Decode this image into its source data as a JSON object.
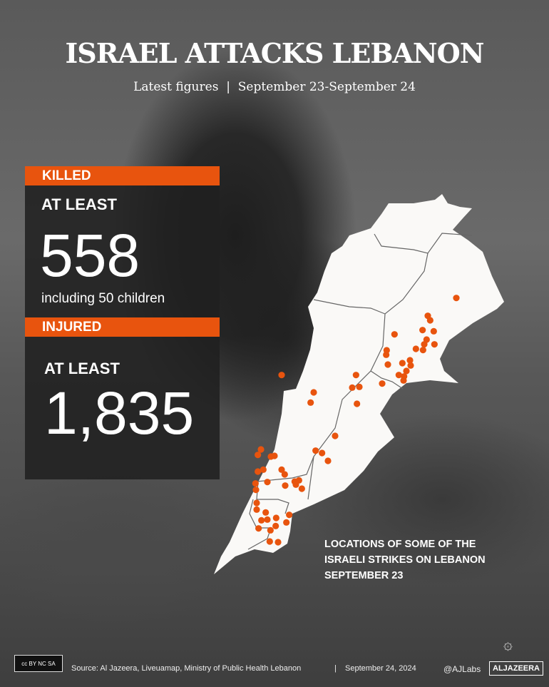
{
  "header": {
    "title": "ISRAEL ATTACKS LEBANON",
    "subtitle_left": "Latest figures",
    "subtitle_sep": "|",
    "subtitle_right": "September 23-September 24"
  },
  "killed": {
    "label": "KILLED",
    "prefix": "AT LEAST",
    "value": "558",
    "note": "including 50 children"
  },
  "injured": {
    "label": "INJURED",
    "prefix": "AT LEAST",
    "value": "1,835"
  },
  "map": {
    "caption_lines": [
      "LOCATIONS OF SOME OF THE",
      "ISRAELI STRIKES ON LEBANON",
      "SEPTEMBER 23"
    ],
    "land_color": "#faf9f7",
    "border_color": "#666666",
    "strike_color": "#e8540e"
  },
  "footer": {
    "license": "cc BY NC SA",
    "source": "Source: Al Jazeera, Liveuamap, Ministry of Public Health Lebanon",
    "sep": "|",
    "date": "September 24, 2024",
    "handle": "@AJLabs",
    "brand": "ALJAZEERA"
  },
  "colors": {
    "accent": "#e8540e",
    "panel": "#202020"
  }
}
